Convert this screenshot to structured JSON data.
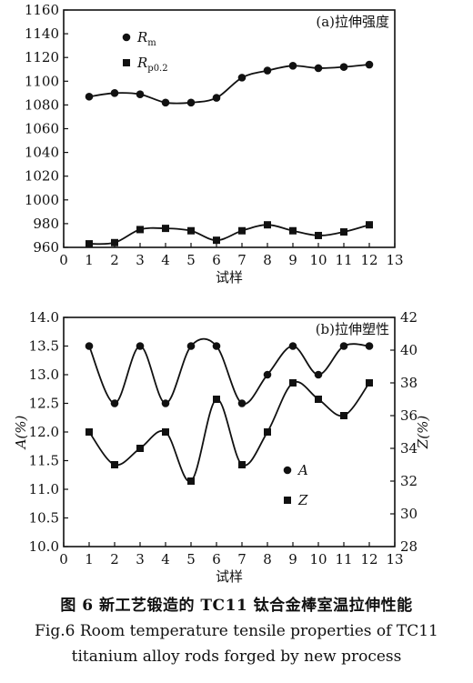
{
  "chart_data": [
    {
      "type": "line",
      "panel_title": "(a)拉伸强度",
      "xlabel": "试样",
      "ylabel": "",
      "xlim": [
        0,
        13
      ],
      "ylim": [
        960,
        1160
      ],
      "x_ticks": [
        0,
        1,
        2,
        3,
        4,
        5,
        6,
        7,
        8,
        9,
        10,
        11,
        12,
        13
      ],
      "y_ticks": [
        960,
        980,
        1000,
        1020,
        1040,
        1060,
        1080,
        1100,
        1120,
        1140,
        1160
      ],
      "legend_position": "top-left",
      "x": [
        1,
        2,
        3,
        4,
        5,
        6,
        7,
        8,
        9,
        10,
        11,
        12
      ],
      "series": [
        {
          "name_main": "R",
          "name_sub": "m",
          "marker": "circle",
          "values": [
            1087,
            1090,
            1089,
            1082,
            1082,
            1086,
            1103,
            1109,
            1113,
            1111,
            1112,
            1114
          ]
        },
        {
          "name_main": "R",
          "name_sub": "p0.2",
          "marker": "square",
          "values": [
            963,
            964,
            975,
            976,
            974,
            966,
            974,
            979,
            974,
            970,
            973,
            979
          ]
        }
      ]
    },
    {
      "type": "line",
      "panel_title": "(b)拉伸塑性",
      "xlabel": "试样",
      "ylabel": "A(%)",
      "ylabel_right": "Z(%)",
      "xlim": [
        0,
        13
      ],
      "ylim": [
        10.0,
        14.0
      ],
      "ylim_right": [
        28,
        42
      ],
      "x_ticks": [
        0,
        1,
        2,
        3,
        4,
        5,
        6,
        7,
        8,
        9,
        10,
        11,
        12,
        13
      ],
      "y_ticks": [
        "10.0",
        "10.5",
        "11.0",
        "11.5",
        "12.0",
        "12.5",
        "13.0",
        "13.5",
        "14.0"
      ],
      "y_ticks_right": [
        28,
        30,
        32,
        34,
        36,
        38,
        40,
        42
      ],
      "legend_position": "bottom-center",
      "x": [
        1,
        2,
        3,
        4,
        5,
        6,
        7,
        8,
        9,
        10,
        11,
        12
      ],
      "series": [
        {
          "name": "A",
          "axis": "left",
          "marker": "circle",
          "values": [
            13.5,
            12.5,
            13.5,
            12.5,
            13.5,
            13.5,
            12.5,
            13.0,
            13.5,
            13.0,
            13.5,
            13.5
          ]
        },
        {
          "name": "Z",
          "axis": "right",
          "marker": "square",
          "values": [
            35,
            33,
            34,
            35,
            32,
            37,
            33,
            35,
            38,
            37,
            36,
            38
          ]
        }
      ]
    }
  ],
  "caption": {
    "line1": "图 6  新工艺锻造的 TC11 钛合金棒室温拉伸性能",
    "line2": "Fig.6  Room temperature tensile properties of TC11",
    "line3": "titanium alloy rods forged by new process"
  },
  "colors": {
    "ink": "#111111",
    "background": "#ffffff"
  }
}
